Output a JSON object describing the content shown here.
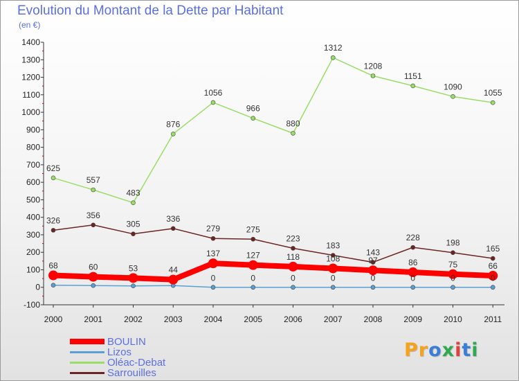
{
  "title": "Evolution du Montant de la Dette par Habitant",
  "subtitle": "(en €)",
  "logo": {
    "text": "Proxiti",
    "colors": [
      "#f5a31a",
      "#f5a31a",
      "#3a7fd5",
      "#2fa84f",
      "#e2413b",
      "#3a7fd5",
      "#2fa84f"
    ]
  },
  "chart_data": {
    "type": "line",
    "x": [
      "2000",
      "2001",
      "2002",
      "2003",
      "2004",
      "2005",
      "2006",
      "2007",
      "2008",
      "2009",
      "2010",
      "2011"
    ],
    "ylim": [
      -100,
      1400
    ],
    "yticks": [
      -100,
      0,
      100,
      200,
      300,
      400,
      500,
      600,
      700,
      800,
      900,
      1000,
      1100,
      1200,
      1300,
      1400
    ],
    "grid": false,
    "legend_position": "bottom-left",
    "series": [
      {
        "name": "BOULIN",
        "color": "#ff0000",
        "values": [
          68,
          60,
          53,
          44,
          137,
          127,
          118,
          108,
          97,
          86,
          75,
          66
        ],
        "labels": [
          "68",
          "60",
          "53",
          "44",
          "137",
          "127",
          "118",
          "108",
          "97",
          "86",
          "75",
          "66"
        ]
      },
      {
        "name": "Lizos",
        "color": "#5a9fd4",
        "values": [
          12,
          10,
          8,
          10,
          0,
          0,
          0,
          0,
          0,
          0,
          0,
          0
        ],
        "labels": [
          "",
          "",
          "",
          "",
          "0",
          "0",
          "0",
          "0",
          "0",
          "0",
          "0",
          "0"
        ]
      },
      {
        "name": "Oléac-Debat",
        "color": "#99dd66",
        "values": [
          625,
          557,
          483,
          876,
          1056,
          966,
          880,
          1312,
          1208,
          1151,
          1090,
          1055
        ],
        "labels": [
          "625",
          "557",
          "483",
          "876",
          "1056",
          "966",
          "880",
          "1312",
          "1208",
          "1151",
          "1090",
          "1055"
        ]
      },
      {
        "name": "Sarrouilles",
        "color": "#6b2424",
        "values": [
          326,
          356,
          305,
          336,
          279,
          275,
          223,
          183,
          143,
          228,
          198,
          165
        ],
        "labels": [
          "326",
          "356",
          "305",
          "336",
          "279",
          "275",
          "223",
          "183",
          "143",
          "228",
          "198",
          "165"
        ]
      }
    ]
  }
}
